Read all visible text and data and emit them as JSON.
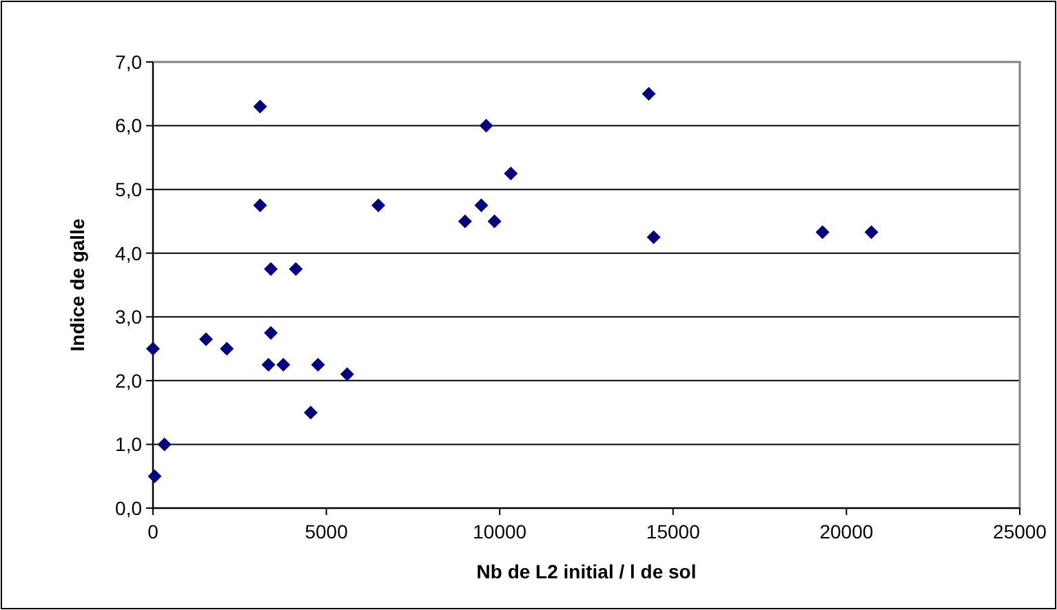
{
  "chart_data": {
    "type": "scatter",
    "xlabel": "Nb de L2 initial / l de sol",
    "ylabel": "Indice de galle",
    "x": [
      0,
      50,
      330,
      1530,
      2130,
      3090,
      3090,
      3400,
      3400,
      3330,
      3760,
      4120,
      4550,
      4760,
      5600,
      6500,
      9000,
      9470,
      9610,
      9850,
      10320,
      14300,
      14440,
      19310,
      20720
    ],
    "series": [
      {
        "color": "#000080",
        "values": [
          2.5,
          0.5,
          1.0,
          2.65,
          2.5,
          6.3,
          4.75,
          3.75,
          2.75,
          2.25,
          2.25,
          3.75,
          1.5,
          2.25,
          2.1,
          4.75,
          4.5,
          4.75,
          6.0,
          4.5,
          5.25,
          6.5,
          4.25,
          4.33,
          4.33
        ]
      }
    ],
    "xlim": [
      0,
      25000
    ],
    "xticks": [
      0,
      5000,
      10000,
      15000,
      20000,
      25000
    ],
    "ylim": [
      0,
      7
    ],
    "yticks": [
      {
        "value": 0,
        "label": "0,0"
      },
      {
        "value": 1,
        "label": "1,0"
      },
      {
        "value": 2,
        "label": "2,0"
      },
      {
        "value": 3,
        "label": "3,0"
      },
      {
        "value": 4,
        "label": "4,0"
      },
      {
        "value": 5,
        "label": "5,0"
      },
      {
        "value": 6,
        "label": "6,0"
      },
      {
        "value": 7,
        "label": "7,0"
      }
    ],
    "grid": "y",
    "marker": "diamond"
  }
}
